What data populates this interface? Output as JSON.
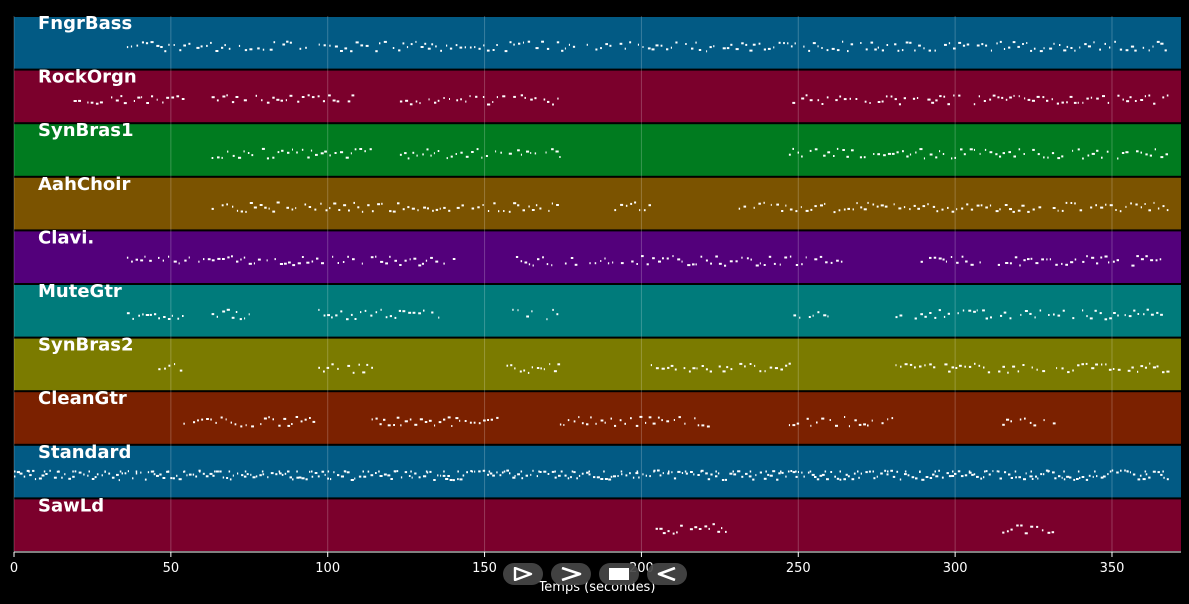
{
  "chart_data": {
    "type": "piano-roll",
    "xlabel": "Temps (secondes)",
    "xlim": [
      0,
      372
    ],
    "xticks": [
      0,
      50,
      100,
      150,
      200,
      250,
      300,
      350
    ],
    "grid": true,
    "tracks": [
      {
        "name": "FngrBass",
        "color": "#025a84",
        "note_spans": [
          [
            36,
            368
          ]
        ]
      },
      {
        "name": "RockOrgn",
        "color": "#7b002c",
        "note_spans": [
          [
            19,
            54
          ],
          [
            63,
            113
          ],
          [
            123,
            174
          ],
          [
            247,
            368
          ]
        ]
      },
      {
        "name": "SynBras1",
        "color": "#007b1f",
        "note_spans": [
          [
            63,
            114
          ],
          [
            123,
            174
          ],
          [
            247,
            368
          ]
        ]
      },
      {
        "name": "AahChoir",
        "color": "#7b5300",
        "note_spans": [
          [
            63,
            174
          ],
          [
            190,
            203
          ],
          [
            231,
            368
          ]
        ]
      },
      {
        "name": "Clavi.",
        "color": "#53007b",
        "note_spans": [
          [
            36,
            141
          ],
          [
            160,
            264
          ],
          [
            289,
            366
          ]
        ]
      },
      {
        "name": "MuteGtr",
        "color": "#007b7b",
        "note_spans": [
          [
            36,
            54
          ],
          [
            63,
            76
          ],
          [
            97,
            136
          ],
          [
            157,
            174
          ],
          [
            247,
            260
          ],
          [
            281,
            368
          ]
        ]
      },
      {
        "name": "SynBras2",
        "color": "#7b7b00",
        "note_spans": [
          [
            46,
            54
          ],
          [
            97,
            114
          ],
          [
            157,
            174
          ],
          [
            203,
            248
          ],
          [
            281,
            368
          ]
        ]
      },
      {
        "name": "CleanGtr",
        "color": "#7b2100",
        "note_spans": [
          [
            54,
            96
          ],
          [
            114,
            156
          ],
          [
            174,
            221
          ],
          [
            247,
            280
          ],
          [
            315,
            332
          ]
        ]
      },
      {
        "name": "Standard",
        "color": "#025a84",
        "note_spans": [
          [
            0,
            368
          ]
        ]
      },
      {
        "name": "SawLd",
        "color": "#7b002c",
        "note_spans": [
          [
            203,
            227
          ],
          [
            315,
            332
          ]
        ]
      }
    ]
  },
  "controls": [
    {
      "name": "play",
      "icon": "play-icon"
    },
    {
      "name": "forward",
      "icon": "chevron-right-icon"
    },
    {
      "name": "stop",
      "icon": "stop-icon"
    },
    {
      "name": "rewind",
      "icon": "rewind-icon"
    }
  ]
}
